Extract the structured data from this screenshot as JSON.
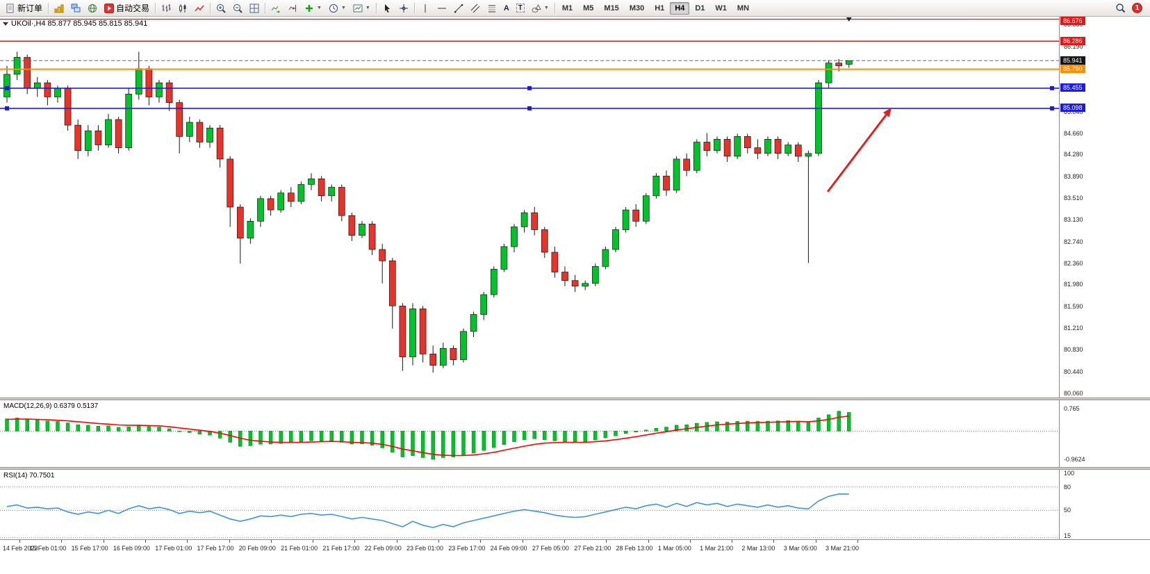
{
  "toolbar": {
    "new_order_label": "新订单",
    "autotrade_label": "自动交易",
    "text_tool_glyph": "A",
    "label_tool_glyph": "T",
    "timeframes": [
      "M1",
      "M5",
      "M15",
      "M30",
      "H1",
      "H4",
      "D1",
      "W1",
      "MN"
    ],
    "active_timeframe": "H4",
    "notification_count": "1"
  },
  "chart": {
    "title": "UKOil·,H4 85.877 85.945 85.815 85.941"
  },
  "indicators": {
    "macd": {
      "label": "MACD(12,26,9) 0.6379 0.5137"
    },
    "rsi": {
      "label": "RSI(14) 70.7501",
      "scale_labels": [
        "100",
        "80",
        "50",
        "15"
      ]
    }
  },
  "price_axis": {
    "ticks": [
      "86.580",
      "86.190",
      "85.810",
      "85.430",
      "85.040",
      "84.660",
      "84.280",
      "83.890",
      "83.510",
      "83.130",
      "82.740",
      "82.360",
      "81.980",
      "81.590",
      "81.210",
      "80.830",
      "80.440",
      "80.060"
    ],
    "line_labels": [
      {
        "text": "86.676",
        "price": 86.676,
        "bg": "#e21717"
      },
      {
        "text": "86.286",
        "price": 86.286,
        "bg": "#e21717"
      },
      {
        "text": "85.941",
        "price": 85.941,
        "bg": "#151515"
      },
      {
        "text": "85.790",
        "price": 85.79,
        "bg": "#ff8d00"
      },
      {
        "text": "85.455",
        "price": 85.455,
        "bg": "#1d1dd8"
      },
      {
        "text": "85.098",
        "price": 85.098,
        "bg": "#1d1dd8"
      }
    ]
  },
  "time_axis": {
    "labels": [
      "14 Feb 2023",
      "15 Feb 01:00",
      "15 Feb 17:00",
      "16 Feb 09:00",
      "17 Feb 01:00",
      "17 Feb 17:00",
      "20 Feb 09:00",
      "21 Feb 01:00",
      "21 Feb 17:00",
      "22 Feb 09:00",
      "23 Feb 01:00",
      "23 Feb 17:00",
      "24 Feb 09:00",
      "27 Feb 05:00",
      "27 Feb 21:00",
      "28 Feb 13:00",
      "1 Mar 05:00",
      "1 Mar 21:00",
      "2 Mar 13:00",
      "3 Mar 05:00",
      "3 Mar 21:00"
    ]
  },
  "chart_data": {
    "type": "candlestick",
    "symbol": "UKOil",
    "timeframe": "H4",
    "ohlc_current": {
      "open": 85.877,
      "high": 85.945,
      "low": 85.815,
      "close": 85.941
    },
    "current_price": 85.941,
    "price_range": [
      79.98,
      86.72
    ],
    "colors": {
      "up": "#00c32b",
      "down": "#e8332a",
      "wick": "#151515"
    },
    "candles": [
      [
        85.3,
        85.85,
        85.2,
        85.7
      ],
      [
        85.7,
        86.1,
        85.6,
        86.0
      ],
      [
        86.0,
        86.05,
        85.35,
        85.45
      ],
      [
        85.45,
        85.65,
        85.3,
        85.55
      ],
      [
        85.55,
        85.6,
        85.15,
        85.3
      ],
      [
        85.3,
        85.5,
        85.2,
        85.45
      ],
      [
        85.45,
        85.5,
        84.7,
        84.8
      ],
      [
        84.8,
        84.9,
        84.2,
        84.35
      ],
      [
        84.35,
        84.8,
        84.25,
        84.7
      ],
      [
        84.7,
        84.8,
        84.35,
        84.45
      ],
      [
        84.45,
        85.0,
        84.4,
        84.9
      ],
      [
        84.9,
        84.95,
        84.3,
        84.4
      ],
      [
        84.4,
        85.45,
        84.35,
        85.35
      ],
      [
        85.35,
        86.1,
        85.25,
        85.8
      ],
      [
        85.8,
        85.85,
        85.15,
        85.3
      ],
      [
        85.3,
        85.6,
        85.2,
        85.55
      ],
      [
        85.55,
        85.6,
        85.05,
        85.2
      ],
      [
        85.2,
        85.25,
        84.3,
        84.6
      ],
      [
        84.6,
        84.95,
        84.5,
        84.85
      ],
      [
        84.85,
        84.9,
        84.4,
        84.5
      ],
      [
        84.5,
        84.8,
        84.4,
        84.75
      ],
      [
        84.75,
        84.8,
        84.05,
        84.2
      ],
      [
        84.2,
        84.25,
        83.0,
        83.35
      ],
      [
        83.35,
        83.4,
        82.35,
        82.8
      ],
      [
        82.8,
        83.15,
        82.7,
        83.1
      ],
      [
        83.1,
        83.55,
        83.0,
        83.5
      ],
      [
        83.5,
        83.55,
        83.2,
        83.3
      ],
      [
        83.3,
        83.65,
        83.25,
        83.6
      ],
      [
        83.6,
        83.7,
        83.35,
        83.45
      ],
      [
        83.45,
        83.8,
        83.4,
        83.75
      ],
      [
        83.75,
        83.95,
        83.65,
        83.85
      ],
      [
        83.85,
        83.9,
        83.45,
        83.55
      ],
      [
        83.55,
        83.75,
        83.45,
        83.7
      ],
      [
        83.7,
        83.75,
        83.1,
        83.2
      ],
      [
        83.2,
        83.25,
        82.75,
        82.85
      ],
      [
        82.85,
        83.1,
        82.8,
        83.05
      ],
      [
        83.05,
        83.1,
        82.5,
        82.6
      ],
      [
        82.6,
        82.7,
        82.0,
        82.4
      ],
      [
        82.4,
        82.45,
        81.2,
        81.6
      ],
      [
        81.6,
        81.65,
        80.45,
        80.7
      ],
      [
        80.7,
        81.65,
        80.55,
        81.55
      ],
      [
        81.55,
        81.6,
        80.6,
        80.75
      ],
      [
        80.75,
        80.9,
        80.42,
        80.55
      ],
      [
        80.55,
        80.95,
        80.5,
        80.85
      ],
      [
        80.85,
        80.9,
        80.55,
        80.65
      ],
      [
        80.65,
        81.2,
        80.6,
        81.15
      ],
      [
        81.15,
        81.5,
        81.05,
        81.45
      ],
      [
        81.45,
        81.85,
        81.35,
        81.8
      ],
      [
        81.8,
        82.3,
        81.75,
        82.25
      ],
      [
        82.25,
        82.7,
        82.2,
        82.65
      ],
      [
        82.65,
        83.05,
        82.55,
        83.0
      ],
      [
        83.0,
        83.3,
        82.9,
        83.25
      ],
      [
        83.25,
        83.35,
        82.85,
        82.95
      ],
      [
        82.95,
        83.0,
        82.45,
        82.55
      ],
      [
        82.55,
        82.65,
        82.1,
        82.2
      ],
      [
        82.2,
        82.3,
        81.95,
        82.05
      ],
      [
        82.05,
        82.15,
        81.85,
        81.95
      ],
      [
        81.95,
        82.05,
        81.88,
        82.0
      ],
      [
        82.0,
        82.35,
        81.95,
        82.3
      ],
      [
        82.3,
        82.65,
        82.25,
        82.6
      ],
      [
        82.6,
        83.0,
        82.55,
        82.95
      ],
      [
        82.95,
        83.35,
        82.9,
        83.3
      ],
      [
        83.3,
        83.4,
        83.0,
        83.1
      ],
      [
        83.1,
        83.6,
        83.05,
        83.55
      ],
      [
        83.55,
        83.95,
        83.5,
        83.9
      ],
      [
        83.9,
        84.0,
        83.55,
        83.65
      ],
      [
        83.65,
        84.25,
        83.6,
        84.2
      ],
      [
        84.2,
        84.3,
        83.9,
        84.0
      ],
      [
        84.0,
        84.55,
        83.95,
        84.5
      ],
      [
        84.5,
        84.66,
        84.25,
        84.35
      ],
      [
        84.35,
        84.6,
        84.3,
        84.55
      ],
      [
        84.55,
        84.6,
        84.15,
        84.25
      ],
      [
        84.25,
        84.65,
        84.2,
        84.6
      ],
      [
        84.6,
        84.65,
        84.3,
        84.4
      ],
      [
        84.4,
        84.55,
        84.2,
        84.3
      ],
      [
        84.3,
        84.6,
        84.25,
        84.55
      ],
      [
        84.55,
        84.6,
        84.2,
        84.3
      ],
      [
        84.3,
        84.5,
        84.25,
        84.45
      ],
      [
        84.45,
        84.5,
        84.15,
        84.25
      ],
      [
        84.25,
        84.35,
        82.36,
        84.3
      ],
      [
        84.3,
        85.6,
        84.25,
        85.55
      ],
      [
        85.55,
        85.95,
        85.45,
        85.9
      ],
      [
        85.9,
        85.97,
        85.75,
        85.85
      ],
      [
        85.877,
        85.945,
        85.815,
        85.941
      ]
    ],
    "levels": [
      {
        "price": 86.676,
        "color": "#e21717",
        "width": 1.2
      },
      {
        "price": 86.286,
        "color": "#e21717",
        "width": 1.6
      },
      {
        "price": 85.79,
        "color": "#ff8d00",
        "width": 2
      },
      {
        "price": 85.455,
        "color": "#1d1dd8",
        "width": 1.6,
        "handles": true
      },
      {
        "price": 85.098,
        "color": "#1d1dd8",
        "width": 1.6,
        "handles": true
      }
    ],
    "arrow": {
      "color": "#e02020",
      "from": {
        "index": 80.9,
        "price": 83.62
      },
      "to": {
        "index": 87.2,
        "price": 85.11
      }
    },
    "macd": {
      "range": [
        -1.22,
        1.05
      ],
      "scale_labels": [
        "0.765",
        "-0.9624"
      ],
      "color_hist": "#00c32b",
      "color_signal": "#ff0000",
      "histogram": [
        0.42,
        0.45,
        0.4,
        0.38,
        0.35,
        0.33,
        0.28,
        0.22,
        0.2,
        0.17,
        0.18,
        0.13,
        0.15,
        0.2,
        0.16,
        0.14,
        0.08,
        -0.02,
        -0.05,
        -0.1,
        -0.14,
        -0.24,
        -0.38,
        -0.52,
        -0.5,
        -0.45,
        -0.44,
        -0.42,
        -0.4,
        -0.36,
        -0.33,
        -0.34,
        -0.33,
        -0.38,
        -0.44,
        -0.43,
        -0.48,
        -0.57,
        -0.72,
        -0.88,
        -0.84,
        -0.9,
        -0.9624,
        -0.9,
        -0.88,
        -0.82,
        -0.75,
        -0.66,
        -0.56,
        -0.46,
        -0.36,
        -0.29,
        -0.26,
        -0.29,
        -0.33,
        -0.36,
        -0.39,
        -0.37,
        -0.3,
        -0.23,
        -0.16,
        -0.08,
        -0.03,
        0.04,
        0.1,
        0.14,
        0.2,
        0.22,
        0.27,
        0.3,
        0.32,
        0.31,
        0.33,
        0.34,
        0.33,
        0.34,
        0.35,
        0.36,
        0.34,
        0.31,
        0.45,
        0.56,
        0.68,
        0.6379
      ],
      "signal": [
        0.4,
        0.41,
        0.41,
        0.4,
        0.39,
        0.37,
        0.35,
        0.32,
        0.29,
        0.26,
        0.24,
        0.21,
        0.2,
        0.2,
        0.19,
        0.18,
        0.15,
        0.11,
        0.07,
        0.03,
        -0.01,
        -0.07,
        -0.15,
        -0.24,
        -0.31,
        -0.34,
        -0.37,
        -0.38,
        -0.38,
        -0.38,
        -0.37,
        -0.36,
        -0.35,
        -0.36,
        -0.38,
        -0.39,
        -0.41,
        -0.45,
        -0.52,
        -0.61,
        -0.67,
        -0.73,
        -0.79,
        -0.82,
        -0.83,
        -0.83,
        -0.81,
        -0.77,
        -0.72,
        -0.65,
        -0.58,
        -0.51,
        -0.45,
        -0.41,
        -0.39,
        -0.38,
        -0.38,
        -0.38,
        -0.36,
        -0.33,
        -0.29,
        -0.24,
        -0.19,
        -0.13,
        -0.07,
        -0.02,
        0.04,
        0.08,
        0.13,
        0.17,
        0.21,
        0.24,
        0.26,
        0.28,
        0.29,
        0.3,
        0.31,
        0.32,
        0.33,
        0.32,
        0.35,
        0.4,
        0.47,
        0.5137
      ]
    },
    "rsi": {
      "range": [
        13,
        102
      ],
      "level_lines": [
        80,
        50,
        15
      ],
      "color": "#4093d5",
      "values": [
        55,
        57,
        53,
        54,
        52,
        53,
        48,
        45,
        48,
        46,
        50,
        46,
        52,
        56,
        52,
        54,
        51,
        46,
        49,
        47,
        49,
        44,
        39,
        36,
        39,
        43,
        42,
        44,
        42,
        45,
        46,
        44,
        45,
        42,
        39,
        41,
        39,
        37,
        33,
        29,
        36,
        31,
        28,
        32,
        29,
        34,
        37,
        40,
        43,
        46,
        49,
        51,
        49,
        47,
        44,
        42,
        41,
        42,
        45,
        48,
        51,
        54,
        52,
        56,
        58,
        54,
        59,
        55,
        60,
        57,
        59,
        55,
        58,
        56,
        54,
        57,
        54,
        56,
        53,
        52,
        62,
        68,
        71,
        70.75
      ]
    }
  }
}
